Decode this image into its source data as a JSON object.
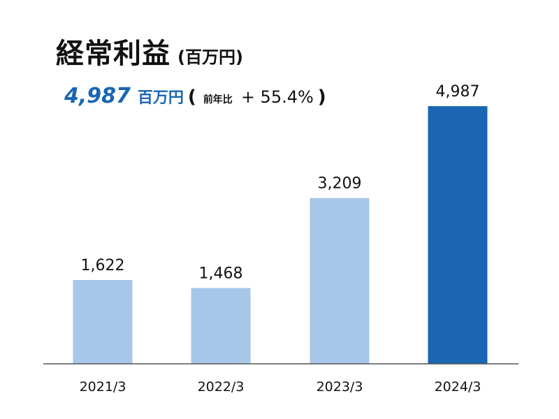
{
  "header": {
    "title": "経常利益",
    "unit": "(百万円)"
  },
  "summary": {
    "value": "4,987",
    "unit": "百万円",
    "open_paren": "(",
    "yoy_label": "前年比",
    "yoy_value": "+ 55.4%",
    "close_paren": ")"
  },
  "colors": {
    "highlight": "#1a66b3",
    "normal": "#a7c6e8",
    "axis": "#555555"
  },
  "chart_data": {
    "type": "bar",
    "categories": [
      "2021/3",
      "2022/3",
      "2023/3",
      "2024/3"
    ],
    "values": [
      1622,
      1468,
      3209,
      4987
    ],
    "value_labels": [
      "1,622",
      "1,468",
      "3,209",
      "4,987"
    ],
    "highlight_index": 3,
    "ylim": [
      0,
      4987
    ],
    "grid": false,
    "legend": "none"
  }
}
